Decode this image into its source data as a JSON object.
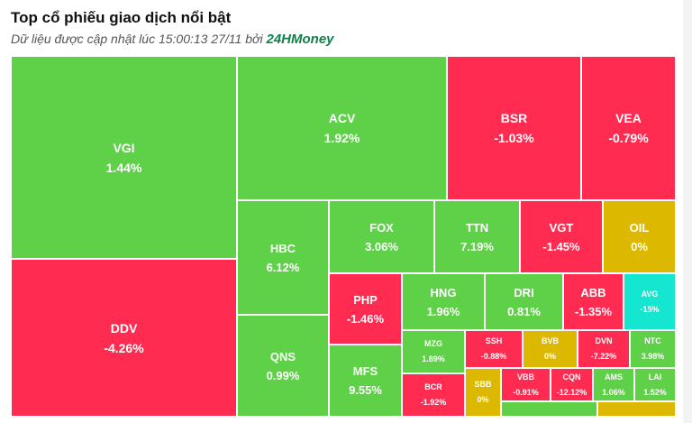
{
  "header": {
    "title": "Top cổ phiếu giao dịch nổi bật",
    "subtitle": "Dữ liệu được cập nhật lúc 15:00:13 27/11 bởi",
    "brand": "24HMoney"
  },
  "colors": {
    "up": "#5fd148",
    "down": "#ff2b51",
    "flat": "#dcb900",
    "floor": "#14e6cf"
  },
  "tiles": [
    {
      "ticker": "VGI",
      "change": "1.44%",
      "status": "up"
    },
    {
      "ticker": "DDV",
      "change": "-4.26%",
      "status": "down"
    },
    {
      "ticker": "ACV",
      "change": "1.92%",
      "status": "up"
    },
    {
      "ticker": "BSR",
      "change": "-1.03%",
      "status": "down"
    },
    {
      "ticker": "VEA",
      "change": "-0.79%",
      "status": "down"
    },
    {
      "ticker": "HBC",
      "change": "6.12%",
      "status": "up"
    },
    {
      "ticker": "QNS",
      "change": "0.99%",
      "status": "up"
    },
    {
      "ticker": "FOX",
      "change": "3.06%",
      "status": "up"
    },
    {
      "ticker": "TTN",
      "change": "7.19%",
      "status": "up"
    },
    {
      "ticker": "VGT",
      "change": "-1.45%",
      "status": "down"
    },
    {
      "ticker": "OIL",
      "change": "0%",
      "status": "flat"
    },
    {
      "ticker": "PHP",
      "change": "-1.46%",
      "status": "down"
    },
    {
      "ticker": "MFS",
      "change": "9.55%",
      "status": "up"
    },
    {
      "ticker": "HNG",
      "change": "1.96%",
      "status": "up"
    },
    {
      "ticker": "DRI",
      "change": "0.81%",
      "status": "up"
    },
    {
      "ticker": "ABB",
      "change": "-1.35%",
      "status": "down"
    },
    {
      "ticker": "AVG",
      "change": "-15%",
      "status": "floor"
    },
    {
      "ticker": "MZG",
      "change": "1.89%",
      "status": "up"
    },
    {
      "ticker": "BCR",
      "change": "-1.92%",
      "status": "down"
    },
    {
      "ticker": "SSH",
      "change": "-0.88%",
      "status": "down"
    },
    {
      "ticker": "BVB",
      "change": "0%",
      "status": "flat"
    },
    {
      "ticker": "DVN",
      "change": "-7.22%",
      "status": "down"
    },
    {
      "ticker": "NTC",
      "change": "3.98%",
      "status": "up"
    },
    {
      "ticker": "SBB",
      "change": "0%",
      "status": "flat"
    },
    {
      "ticker": "VBB",
      "change": "-0.91%",
      "status": "down"
    },
    {
      "ticker": "CQN",
      "change": "-12.12%",
      "status": "down"
    },
    {
      "ticker": "AMS",
      "change": "1.06%",
      "status": "up"
    },
    {
      "ticker": "LAI",
      "change": "1.52%",
      "status": "up"
    },
    {
      "ticker": "",
      "change": "",
      "status": "up"
    },
    {
      "ticker": "",
      "change": "",
      "status": "flat"
    }
  ]
}
